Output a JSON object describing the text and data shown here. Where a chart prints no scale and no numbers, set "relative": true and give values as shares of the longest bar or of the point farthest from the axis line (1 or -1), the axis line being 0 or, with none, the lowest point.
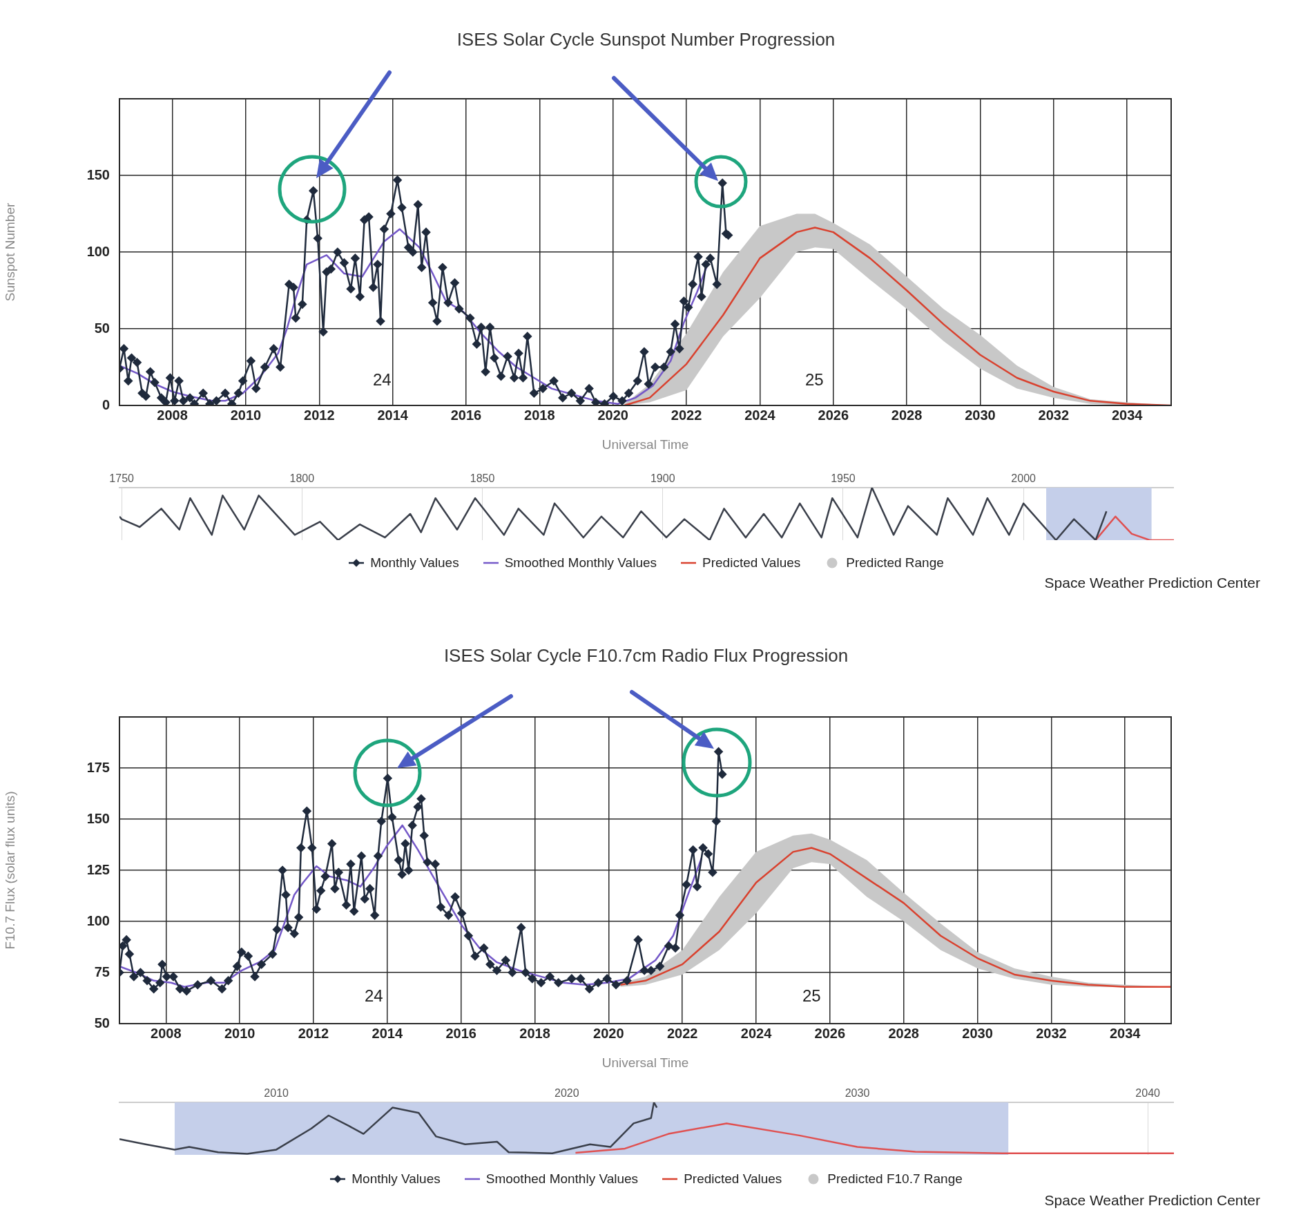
{
  "chart_data": [
    {
      "type": "line",
      "title": "ISES Solar Cycle Sunspot Number Progression",
      "xlabel": "Universal Time",
      "ylabel": "Sunspot Number",
      "xlim": [
        2006.56,
        2035.2
      ],
      "xticks": [
        2008,
        2010,
        2012,
        2014,
        2016,
        2018,
        2020,
        2022,
        2024,
        2026,
        2028,
        2030,
        2032,
        2034
      ],
      "ylim": [
        0,
        200
      ],
      "yticks": [
        0,
        50,
        100,
        150
      ],
      "grid": true,
      "legend": "bottom",
      "annotations": [
        "Space Weather Prediction Center",
        "24",
        "25"
      ],
      "series": [
        {
          "name": "Monthly Values",
          "type": "line",
          "marker": "diamond",
          "color": "#1f2a3c",
          "x": [
            2006.56,
            2006.68,
            2006.8,
            2006.89,
            2007.04,
            2007.18,
            2007.28,
            2007.4,
            2007.52,
            2007.7,
            2007.82,
            2007.94,
            2008.06,
            2008.18,
            2008.3,
            2008.48,
            2008.6,
            2008.84,
            2009.02,
            2009.2,
            2009.44,
            2009.62,
            2009.8,
            2009.92,
            2010.14,
            2010.28,
            2010.52,
            2010.76,
            2010.94,
            2011.18,
            2011.3,
            2011.36,
            2011.54,
            2011.66,
            2011.84,
            2011.96,
            2012.11,
            2012.2,
            2012.32,
            2012.5,
            2012.68,
            2012.86,
            2012.98,
            2013.11,
            2013.23,
            2013.35,
            2013.47,
            2013.59,
            2013.67,
            2013.77,
            2013.95,
            2014.13,
            2014.25,
            2014.43,
            2014.55,
            2014.69,
            2014.79,
            2014.91,
            2015.09,
            2015.21,
            2015.36,
            2015.51,
            2015.69,
            2015.81,
            2016.11,
            2016.29,
            2016.41,
            2016.53,
            2016.65,
            2016.77,
            2016.95,
            2017.13,
            2017.31,
            2017.43,
            2017.55,
            2017.67,
            2017.85,
            2018.09,
            2018.39,
            2018.63,
            2018.87,
            2019.11,
            2019.35,
            2019.53,
            2019.77,
            2020.01,
            2020.25,
            2020.43,
            2020.67,
            2020.85,
            2020.97,
            2021.15,
            2021.39,
            2021.57,
            2021.69,
            2021.81,
            2021.93,
            2022.05,
            2022.17,
            2022.32,
            2022.41,
            2022.53,
            2022.65,
            2022.83,
            2022.98,
            2023.08,
            2023.14
          ],
          "values": [
            24,
            37,
            16,
            31,
            28,
            8,
            6,
            22,
            15,
            5,
            2,
            18,
            3,
            16,
            3,
            5,
            1,
            8,
            1,
            3,
            8,
            1,
            8,
            16,
            29,
            11,
            25,
            37,
            25,
            79,
            77,
            57,
            66,
            121,
            140,
            109,
            48,
            87,
            89,
            100,
            93,
            76,
            96,
            71,
            121,
            123,
            77,
            92,
            55,
            115,
            125,
            147,
            129,
            103,
            100,
            131,
            90,
            113,
            67,
            55,
            90,
            67,
            80,
            63,
            57,
            40,
            51,
            22,
            51,
            31,
            19,
            32,
            18,
            34,
            18,
            45,
            8,
            11,
            16,
            5,
            8,
            3,
            11,
            2,
            1,
            6,
            3,
            8,
            16,
            35,
            14,
            25,
            25,
            35,
            53,
            37,
            68,
            64,
            79,
            97,
            71,
            92,
            96,
            79,
            145,
            112,
            111
          ]
        },
        {
          "name": "Smoothed Monthly Values",
          "type": "line",
          "marker": "none",
          "color": "#7458c8",
          "x": [
            2006.56,
            2007.04,
            2007.52,
            2008,
            2008.48,
            2009.08,
            2009.44,
            2009.92,
            2010.4,
            2010.88,
            2011.12,
            2011.36,
            2011.66,
            2012.2,
            2012.68,
            2013.17,
            2013.77,
            2014.19,
            2014.73,
            2015.09,
            2015.45,
            2015.93,
            2016.41,
            2016.89,
            2017.37,
            2017.85,
            2018.33,
            2018.93,
            2019.53,
            2020.13,
            2020.61,
            2021.09,
            2021.57,
            2021.93,
            2022.29,
            2022.59
          ],
          "values": [
            26,
            21,
            14,
            9,
            6,
            3,
            3,
            8,
            19,
            34,
            50,
            70,
            92,
            98,
            86,
            84,
            107,
            115,
            103,
            86,
            68,
            61,
            47,
            35,
            25,
            18,
            11,
            7,
            3,
            1,
            5,
            13,
            29,
            54,
            74,
            93
          ]
        },
        {
          "name": "Predicted Values",
          "type": "line",
          "marker": "none",
          "color": "#d9412e",
          "x": [
            2020.31,
            2021,
            2022,
            2023,
            2024,
            2025,
            2025.5,
            2026,
            2027,
            2028,
            2029,
            2030,
            2031,
            2032,
            2033,
            2034,
            2035.2
          ],
          "values": [
            0,
            5,
            27,
            59,
            96,
            113,
            116,
            113,
            96,
            75,
            53,
            33,
            18,
            9,
            3,
            1,
            0
          ]
        },
        {
          "name": "Predicted Range",
          "type": "line",
          "color": "#c8c8c8",
          "x": [
            2020.31,
            2021,
            2022,
            2023,
            2024,
            2025,
            2025.5,
            2026,
            2027,
            2028,
            2029,
            2030,
            2031,
            2032,
            2033,
            2034,
            2035.2
          ],
          "values": [
            null,
            null,
            null,
            null,
            null,
            null,
            null,
            null,
            null,
            null,
            null,
            null,
            null,
            null,
            null,
            null,
            null
          ],
          "upper": [
            1,
            14,
            47,
            87,
            117,
            125,
            125,
            119,
            105,
            84,
            63,
            46,
            26,
            12,
            4,
            2,
            0
          ],
          "lower": [
            0,
            2,
            10,
            45,
            70,
            100,
            103,
            102,
            82,
            63,
            42,
            24,
            11,
            5,
            1,
            0,
            0
          ]
        }
      ]
    },
    {
      "type": "line",
      "relative": true,
      "xlim": [
        1749.4,
        2041.7
      ],
      "xticks": [
        1750,
        1800,
        1850,
        1900,
        1950,
        2000
      ],
      "grid": "x",
      "bands": [
        {
          "axis": "x",
          "from": 2006.3,
          "to": 2035.5,
          "color": "#c5cfea"
        }
      ],
      "series": [
        {
          "type": "line",
          "color": "#3a3f4a",
          "x": [
            1749.4,
            1750,
            1755,
            1761,
            1766,
            1769,
            1775,
            1778,
            1784,
            1788,
            1798,
            1805,
            1810,
            1816,
            1823,
            1830,
            1833,
            1837,
            1843,
            1848,
            1856,
            1860,
            1867,
            1870,
            1878,
            1883,
            1889,
            1894,
            1901,
            1906,
            1913,
            1917,
            1923,
            1928,
            1933,
            1938,
            1944,
            1947,
            1954,
            1958,
            1964,
            1968,
            1976,
            1979,
            1986,
            1990,
            1996,
            2000,
            2009,
            2014,
            2020,
            2023
          ],
          "values": [
            0.45,
            0.4,
            0.25,
            0.6,
            0.2,
            0.8,
            0.1,
            0.85,
            0.2,
            0.85,
            0.1,
            0.35,
            0.0,
            0.3,
            0.05,
            0.5,
            0.15,
            0.8,
            0.2,
            0.8,
            0.1,
            0.6,
            0.1,
            0.7,
            0.05,
            0.45,
            0.05,
            0.55,
            0.05,
            0.4,
            0.0,
            0.6,
            0.05,
            0.5,
            0.05,
            0.7,
            0.05,
            0.8,
            0.05,
            1.0,
            0.1,
            0.65,
            0.1,
            0.8,
            0.1,
            0.8,
            0.1,
            0.7,
            0.0,
            0.4,
            0.0,
            0.55
          ]
        },
        {
          "type": "line",
          "color": "#e05050",
          "x": [
            2020,
            2025.5,
            2030,
            2035,
            2041.7
          ],
          "values": [
            0,
            0.45,
            0.12,
            0,
            0
          ]
        }
      ]
    },
    {
      "type": "line",
      "title": "ISES Solar Cycle F10.7cm Radio Flux Progression",
      "xlabel": "Universal Time",
      "ylabel": "F10.7 Flux (solar flux units)",
      "xlim": [
        2006.74,
        2035.25
      ],
      "xticks": [
        2008,
        2010,
        2012,
        2014,
        2016,
        2018,
        2020,
        2022,
        2024,
        2026,
        2028,
        2030,
        2032,
        2034
      ],
      "ylim": [
        50,
        200
      ],
      "yticks": [
        50,
        75,
        100,
        125,
        150,
        175
      ],
      "grid": true,
      "legend": "bottom",
      "annotations": [
        "Space Weather Prediction Center",
        "24",
        "25"
      ],
      "series": [
        {
          "name": "Monthly Values",
          "type": "line",
          "marker": "diamond",
          "color": "#1f2a3c",
          "x": [
            2006.74,
            2006.83,
            2006.93,
            2007.01,
            2007.13,
            2007.31,
            2007.49,
            2007.67,
            2007.84,
            2007.9,
            2008.02,
            2008.2,
            2008.38,
            2008.56,
            2008.86,
            2009.22,
            2009.52,
            2009.69,
            2009.93,
            2010.05,
            2010.23,
            2010.41,
            2010.59,
            2010.89,
            2011.01,
            2011.16,
            2011.25,
            2011.31,
            2011.48,
            2011.6,
            2011.66,
            2011.82,
            2011.96,
            2012.08,
            2012.2,
            2012.32,
            2012.5,
            2012.58,
            2012.68,
            2012.89,
            2013.01,
            2013.1,
            2013.3,
            2013.39,
            2013.53,
            2013.66,
            2013.75,
            2013.84,
            2014.01,
            2014.13,
            2014.31,
            2014.4,
            2014.49,
            2014.58,
            2014.68,
            2014.83,
            2014.92,
            2015,
            2015.09,
            2015.3,
            2015.45,
            2015.66,
            2015.84,
            2016.02,
            2016.2,
            2016.38,
            2016.62,
            2016.79,
            2016.97,
            2017.21,
            2017.39,
            2017.63,
            2017.75,
            2017.93,
            2018.17,
            2018.41,
            2018.64,
            2019,
            2019.24,
            2019.48,
            2019.72,
            2019.96,
            2020.2,
            2020.5,
            2020.8,
            2020.97,
            2021.15,
            2021.39,
            2021.63,
            2021.81,
            2021.93,
            2022.11,
            2022.29,
            2022.4,
            2022.56,
            2022.7,
            2022.82,
            2022.92,
            2022.98,
            2023.08
          ],
          "values": [
            75,
            88,
            91,
            84,
            73,
            75,
            71,
            67,
            70,
            79,
            73,
            73,
            67,
            66,
            69,
            71,
            67,
            71,
            78,
            85,
            83,
            73,
            79,
            84,
            96,
            125,
            113,
            97,
            94,
            102,
            136,
            154,
            136,
            106,
            115,
            122,
            138,
            116,
            124,
            108,
            128,
            105,
            132,
            111,
            116,
            103,
            132,
            149,
            170,
            151,
            130,
            123,
            138,
            125,
            147,
            156,
            160,
            142,
            129,
            128,
            107,
            103,
            112,
            104,
            93,
            83,
            87,
            79,
            76,
            81,
            75,
            97,
            75,
            72,
            70,
            73,
            70,
            72,
            72,
            67,
            70,
            72,
            69,
            71,
            91,
            76,
            76,
            78,
            88,
            87,
            103,
            118,
            135,
            117,
            136,
            133,
            124,
            149,
            183,
            172
          ]
        },
        {
          "name": "Smoothed Monthly Values",
          "type": "line",
          "marker": "none",
          "color": "#7458c8",
          "x": [
            2006.74,
            2007.19,
            2007.67,
            2008.14,
            2008.5,
            2009.1,
            2009.58,
            2010.05,
            2010.53,
            2010.95,
            2011.19,
            2011.48,
            2011.72,
            2012.08,
            2012.44,
            2012.92,
            2013.27,
            2013.63,
            2013.99,
            2014.41,
            2014.83,
            2015.24,
            2015.66,
            2016.02,
            2016.5,
            2016.97,
            2017.57,
            2018.17,
            2018.76,
            2019.36,
            2019.96,
            2020.55,
            2021.27,
            2021.75,
            2022.11,
            2022.52
          ],
          "values": [
            78,
            75,
            71,
            70,
            68,
            70,
            70,
            76,
            80,
            86,
            98,
            113,
            119,
            127,
            122,
            120,
            117,
            126,
            137,
            147,
            135,
            122,
            109,
            98,
            87,
            80,
            76,
            73,
            70,
            69,
            70,
            72,
            81,
            93,
            111,
            131
          ]
        },
        {
          "name": "Predicted Values",
          "type": "line",
          "marker": "none",
          "color": "#d9412e",
          "x": [
            2020.32,
            2021,
            2022,
            2023,
            2024,
            2025,
            2025.5,
            2026,
            2027,
            2028,
            2029,
            2030,
            2031,
            2032,
            2033,
            2034,
            2035.25
          ],
          "values": [
            69,
            71,
            79,
            95,
            119,
            134,
            136,
            133,
            121,
            109,
            93,
            82,
            74,
            71,
            69,
            68,
            68
          ]
        },
        {
          "name": "Predicted F10.7 Range",
          "type": "line",
          "color": "#c8c8c8",
          "x": [
            2020.32,
            2021,
            2022,
            2023,
            2024,
            2025,
            2025.5,
            2026,
            2027,
            2028,
            2029,
            2030,
            2031,
            2032,
            2033,
            2034,
            2035.25
          ],
          "values": [
            null,
            null,
            null,
            null,
            null,
            null,
            null,
            null,
            null,
            null,
            null,
            null,
            null,
            null,
            null,
            null,
            null
          ],
          "upper": [
            70,
            73,
            86,
            112,
            134,
            142,
            143,
            140,
            130,
            114,
            99,
            85,
            77,
            73,
            70,
            69,
            68
          ],
          "lower": [
            68,
            69,
            74,
            86,
            104,
            126,
            129,
            128,
            112,
            100,
            86,
            77,
            72,
            69,
            68,
            68,
            68
          ]
        }
      ]
    },
    {
      "type": "line",
      "relative": true,
      "xlim": [
        2004.6,
        2040.9
      ],
      "xticks": [
        2010,
        2020,
        2030,
        2040
      ],
      "grid": "x",
      "bands": [
        {
          "axis": "x",
          "from": 2006.5,
          "to": 2035.2,
          "color": "#c5cfea"
        }
      ],
      "series": [
        {
          "type": "line",
          "color": "#3a3f4a",
          "x": [
            2004.6,
            2005.5,
            2006.5,
            2007,
            2008,
            2009,
            2010,
            2011.2,
            2011.8,
            2012.5,
            2013,
            2014,
            2014.9,
            2015.5,
            2016.5,
            2017.6,
            2018,
            2019.5,
            2020.8,
            2021.5,
            2022.3,
            2022.9,
            2023,
            2023.1
          ],
          "values": [
            0.3,
            0.2,
            0.1,
            0.15,
            0.05,
            0.02,
            0.1,
            0.5,
            0.75,
            0.55,
            0.4,
            0.9,
            0.8,
            0.35,
            0.2,
            0.25,
            0.05,
            0.03,
            0.2,
            0.15,
            0.6,
            0.7,
            1.0,
            0.9
          ]
        },
        {
          "type": "line",
          "color": "#e05050",
          "x": [
            2020.3,
            2022,
            2023.5,
            2025.5,
            2028,
            2030,
            2032,
            2035,
            2040.9
          ],
          "values": [
            0.04,
            0.12,
            0.4,
            0.6,
            0.37,
            0.15,
            0.06,
            0.03,
            0.03
          ]
        }
      ]
    }
  ]
}
